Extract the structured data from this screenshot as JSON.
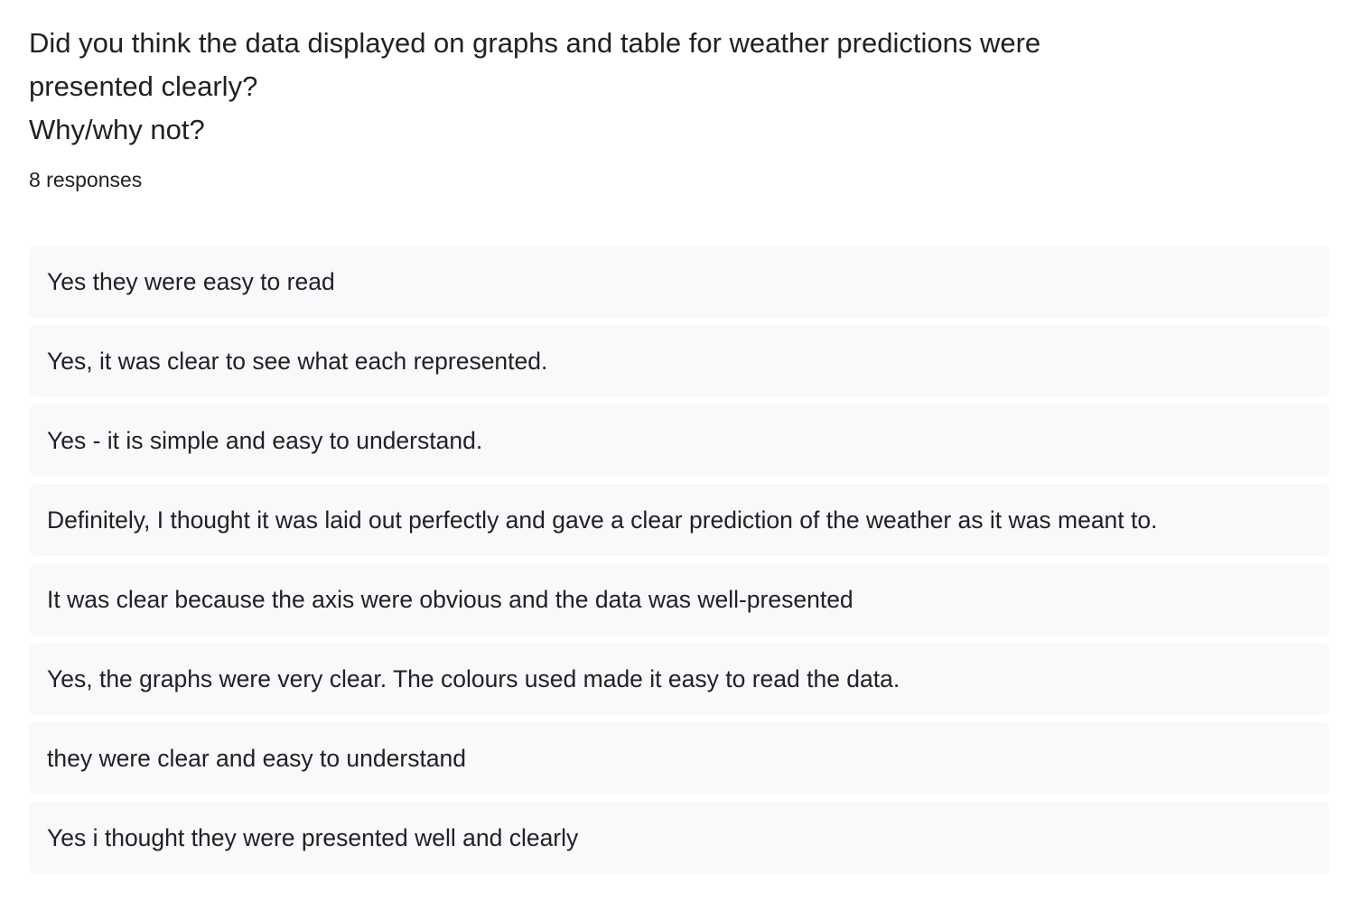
{
  "question": {
    "line1": "Did you think the data displayed on graphs and table for weather predictions were",
    "line2": "presented clearly?",
    "line3": "Why/why not?"
  },
  "response_count": "8 responses",
  "responses": [
    "Yes they were easy to read",
    "Yes, it was clear to see what each represented.",
    "Yes - it is simple and easy to understand.",
    "Definitely, I thought it was laid out perfectly and gave a clear prediction of the weather as it was meant to.",
    "It was clear because the axis were obvious and the data was well-presented",
    "Yes, the graphs were very clear. The colours used made it easy to read the data.",
    "they were clear and easy to understand",
    "Yes i thought they were presented well and clearly"
  ],
  "colors": {
    "text": "#202124",
    "response_background": "#f8f9fa",
    "page_background": "#ffffff"
  }
}
